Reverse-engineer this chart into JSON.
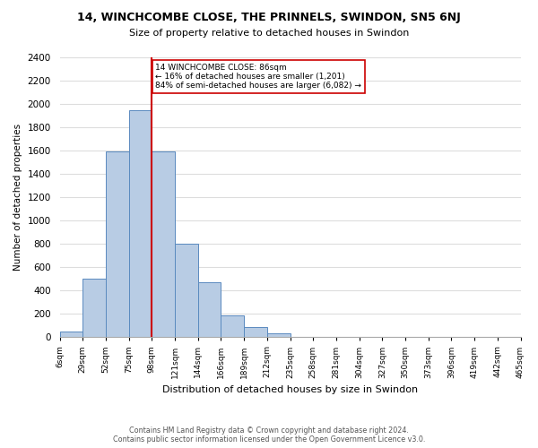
{
  "title": "14, WINCHCOMBE CLOSE, THE PRINNELS, SWINDON, SN5 6NJ",
  "subtitle": "Size of property relative to detached houses in Swindon",
  "xlabel": "Distribution of detached houses by size in Swindon",
  "ylabel": "Number of detached properties",
  "bin_labels": [
    "6sqm",
    "29sqm",
    "52sqm",
    "75sqm",
    "98sqm",
    "121sqm",
    "144sqm",
    "166sqm",
    "189sqm",
    "212sqm",
    "235sqm",
    "258sqm",
    "281sqm",
    "304sqm",
    "327sqm",
    "350sqm",
    "373sqm",
    "396sqm",
    "419sqm",
    "442sqm",
    "465sqm"
  ],
  "bar_values": [
    50,
    500,
    1590,
    1950,
    1590,
    800,
    470,
    190,
    90,
    35,
    0,
    0,
    0,
    0,
    0,
    0,
    0,
    0,
    0,
    0
  ],
  "bar_color": "#b8cce4",
  "bar_edge_color": "#5a8abf",
  "ylim": [
    0,
    2400
  ],
  "yticks": [
    0,
    200,
    400,
    600,
    800,
    1000,
    1200,
    1400,
    1600,
    1800,
    2000,
    2200,
    2400
  ],
  "property_line_bin_index": 3,
  "property_line_color": "#cc0000",
  "annotation_title": "14 WINCHCOMBE CLOSE: 86sqm",
  "annotation_line1": "← 16% of detached houses are smaller (1,201)",
  "annotation_line2": "84% of semi-detached houses are larger (6,082) →",
  "annotation_box_color": "#ffffff",
  "annotation_box_edge": "#cc0000",
  "footer_line1": "Contains HM Land Registry data © Crown copyright and database right 2024.",
  "footer_line2": "Contains public sector information licensed under the Open Government Licence v3.0.",
  "background_color": "#ffffff",
  "grid_color": "#dddddd"
}
